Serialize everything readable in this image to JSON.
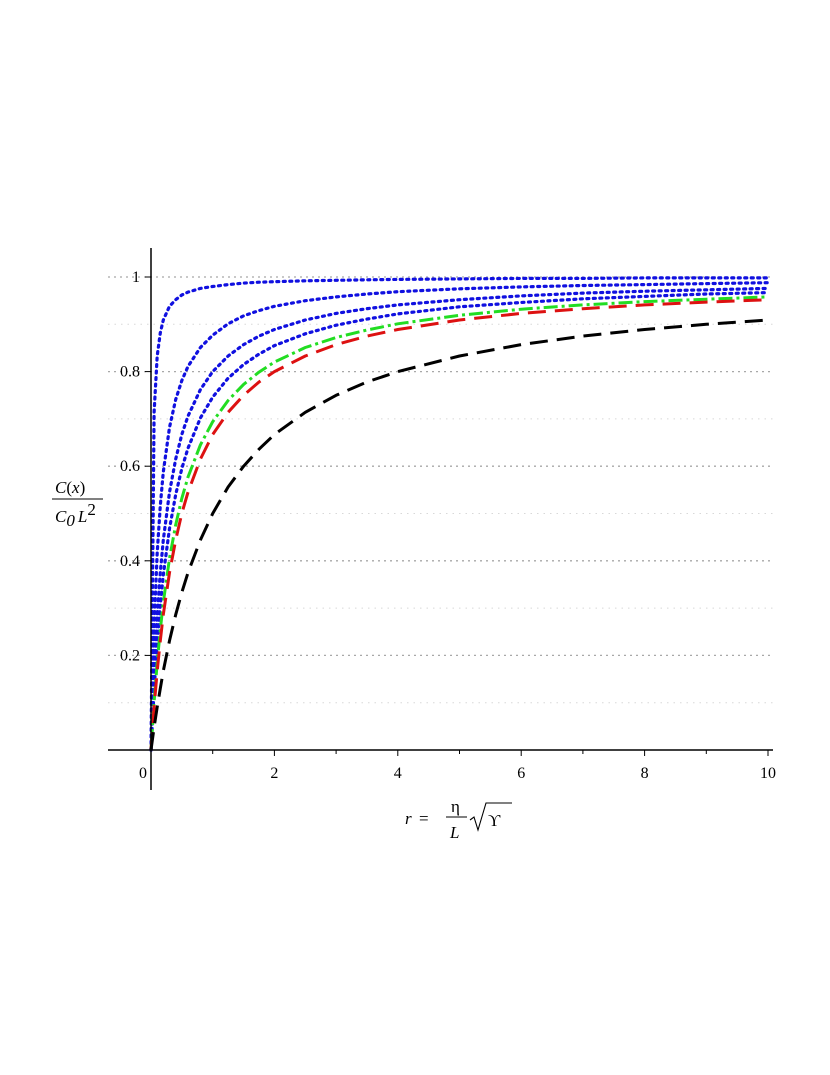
{
  "chart_data": {
    "type": "line",
    "title": "",
    "xlim": [
      0,
      10
    ],
    "ylim": [
      0,
      1.05
    ],
    "x_ticks": [
      "0",
      "2",
      "4",
      "6",
      "8",
      "10"
    ],
    "y_ticks": [
      "0.2",
      "0.4",
      "0.6",
      "0.8",
      "1"
    ],
    "grid": "horizontal dotted",
    "ylabel": {
      "num_C": "C",
      "num_paren_open": "(",
      "num_var": "x",
      "num_paren_close": ")",
      "den_C": "C",
      "den_sub": "0",
      "den_L": "L",
      "den_sup": "2"
    },
    "xlabel": {
      "lhs": "r",
      "eq": "=",
      "num": "η",
      "den": "L",
      "root": "ϒ"
    },
    "x_samples": [
      0,
      0.05,
      0.1,
      0.15,
      0.2,
      0.3,
      0.4,
      0.5,
      0.6,
      0.8,
      1.0,
      1.25,
      1.5,
      1.75,
      2.0,
      2.5,
      3.0,
      3.5,
      4.0,
      5.0,
      6.0,
      7.0,
      8.0,
      9.0,
      10.0
    ],
    "series": [
      {
        "color": "#1010e0",
        "style": "dotted",
        "values": [
          0,
          0.714,
          0.833,
          0.882,
          0.909,
          0.938,
          0.952,
          0.962,
          0.968,
          0.976,
          0.98,
          0.984,
          0.987,
          0.989,
          0.99,
          0.992,
          0.993,
          0.994,
          0.995,
          0.996,
          0.997,
          0.997,
          0.998,
          0.998,
          0.998
        ]
      },
      {
        "color": "#1010e0",
        "style": "dotted",
        "values": [
          0,
          0.263,
          0.417,
          0.517,
          0.588,
          0.682,
          0.741,
          0.781,
          0.811,
          0.851,
          0.877,
          0.901,
          0.918,
          0.929,
          0.938,
          0.95,
          0.958,
          0.964,
          0.969,
          0.975,
          0.979,
          0.982,
          0.984,
          0.986,
          0.988
        ]
      },
      {
        "color": "#1010e0",
        "style": "dotted",
        "values": [
          0,
          0.167,
          0.286,
          0.375,
          0.444,
          0.545,
          0.615,
          0.667,
          0.706,
          0.762,
          0.8,
          0.833,
          0.857,
          0.875,
          0.889,
          0.909,
          0.923,
          0.933,
          0.941,
          0.952,
          0.96,
          0.966,
          0.97,
          0.973,
          0.976
        ]
      },
      {
        "color": "#1010e0",
        "style": "dotted",
        "values": [
          0,
          0.127,
          0.227,
          0.306,
          0.37,
          0.468,
          0.54,
          0.595,
          0.638,
          0.702,
          0.746,
          0.786,
          0.815,
          0.837,
          0.855,
          0.88,
          0.898,
          0.911,
          0.922,
          0.937,
          0.946,
          0.954,
          0.959,
          0.964,
          0.967
        ]
      },
      {
        "color": "#22dd22",
        "style": "dashdot",
        "values": [
          0,
          0.102,
          0.185,
          0.254,
          0.312,
          0.405,
          0.476,
          0.532,
          0.577,
          0.645,
          0.694,
          0.739,
          0.773,
          0.799,
          0.82,
          0.851,
          0.872,
          0.888,
          0.901,
          0.919,
          0.932,
          0.941,
          0.948,
          0.953,
          0.958
        ]
      },
      {
        "color": "#dd1111",
        "style": "dashed",
        "values": [
          0,
          0.091,
          0.167,
          0.231,
          0.286,
          0.375,
          0.444,
          0.5,
          0.545,
          0.615,
          0.667,
          0.714,
          0.75,
          0.778,
          0.8,
          0.833,
          0.857,
          0.875,
          0.889,
          0.909,
          0.923,
          0.933,
          0.941,
          0.947,
          0.952
        ]
      },
      {
        "color": "#000000",
        "style": "dashed",
        "values": [
          0,
          0.048,
          0.091,
          0.13,
          0.167,
          0.231,
          0.286,
          0.333,
          0.375,
          0.444,
          0.5,
          0.556,
          0.6,
          0.636,
          0.667,
          0.714,
          0.75,
          0.778,
          0.8,
          0.833,
          0.857,
          0.875,
          0.889,
          0.9,
          0.909
        ]
      }
    ]
  }
}
